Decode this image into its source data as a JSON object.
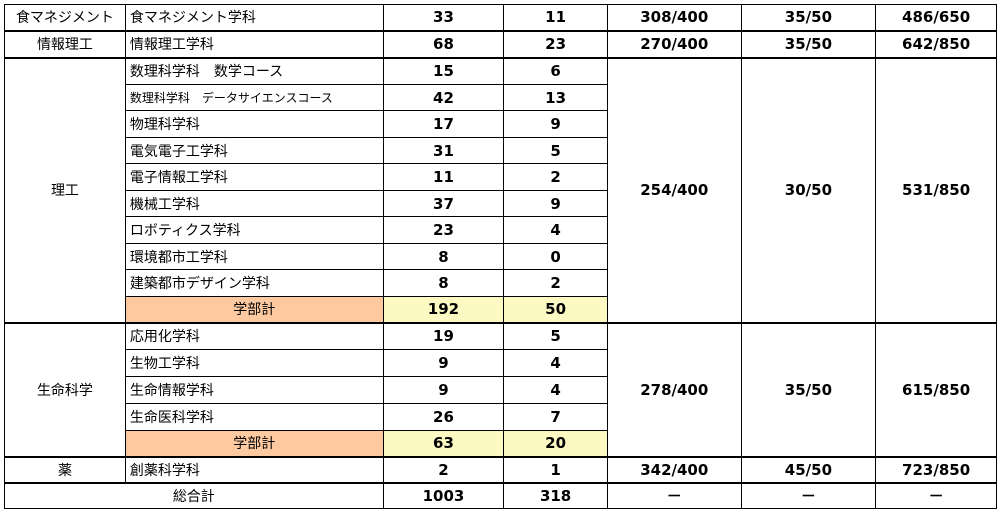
{
  "rows": {
    "food": {
      "faculty": "食マネジメント",
      "department": "食マネジメント学科",
      "a": "33",
      "b": "11",
      "s1": "308/400",
      "s2": "35/50",
      "s3": "486/650"
    },
    "info": {
      "faculty": "情報理工",
      "department": "情報理工学科",
      "a": "68",
      "b": "23",
      "s1": "270/400",
      "s2": "35/50",
      "s3": "642/850"
    },
    "sci": {
      "faculty": "理工",
      "departments": [
        {
          "name": "数理科学科　数学コース",
          "a": "15",
          "b": "6"
        },
        {
          "name": "数理科学科　データサイエンスコース",
          "a": "42",
          "b": "13"
        },
        {
          "name": "物理科学科",
          "a": "17",
          "b": "9"
        },
        {
          "name": "電気電子工学科",
          "a": "31",
          "b": "5"
        },
        {
          "name": "電子情報工学科",
          "a": "11",
          "b": "2"
        },
        {
          "name": "機械工学科",
          "a": "37",
          "b": "9"
        },
        {
          "name": "ロボティクス学科",
          "a": "23",
          "b": "4"
        },
        {
          "name": "環境都市工学科",
          "a": "8",
          "b": "0"
        },
        {
          "name": "建築都市デザイン学科",
          "a": "8",
          "b": "2"
        }
      ],
      "subtotal_label": "学部計",
      "subtotal_a": "192",
      "subtotal_b": "50",
      "s1": "254/400",
      "s2": "30/50",
      "s3": "531/850"
    },
    "life": {
      "faculty": "生命科学",
      "departments": [
        {
          "name": "応用化学科",
          "a": "19",
          "b": "5"
        },
        {
          "name": "生物工学科",
          "a": "9",
          "b": "4"
        },
        {
          "name": "生命情報学科",
          "a": "9",
          "b": "4"
        },
        {
          "name": "生命医科学科",
          "a": "26",
          "b": "7"
        }
      ],
      "subtotal_label": "学部計",
      "subtotal_a": "63",
      "subtotal_b": "20",
      "s1": "278/400",
      "s2": "35/50",
      "s3": "615/850"
    },
    "pharm": {
      "faculty": "薬",
      "department": "創薬科学科",
      "a": "2",
      "b": "1",
      "s1": "342/400",
      "s2": "45/50",
      "s3": "723/850"
    },
    "grand": {
      "label": "総合計",
      "a": "1003",
      "b": "318",
      "s1": "－",
      "s2": "－",
      "s3": "－"
    }
  }
}
